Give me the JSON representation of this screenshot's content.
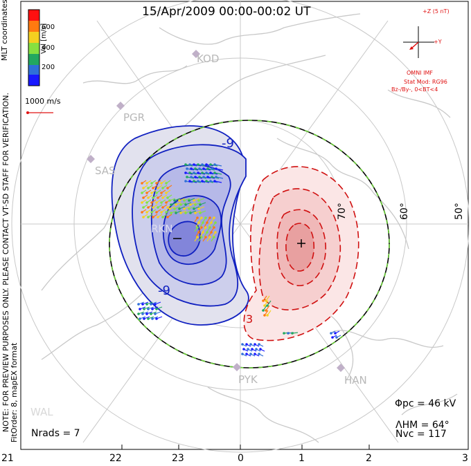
{
  "title": "15/Apr/2009 00:00-00:02 UT",
  "colorbar": {
    "axis_label": "Vel [m/s]",
    "ticks": [
      "600",
      "400",
      "200"
    ],
    "colors": [
      "#ff1010",
      "#ff7a10",
      "#f4d020",
      "#86e040",
      "#22a860",
      "#2f6fd8",
      "#1818ff"
    ]
  },
  "coordinates_label": "MLT coordinates",
  "scale_vector_label": "1000 m/s",
  "side_note": "NOTE: FOR PREVIEW PURPOSES ONLY. PLEASE CONTACT VT-SD STAFF FOR VERIFICATION.",
  "fit_order": "FitOrder: 8, mapEX format",
  "imf": {
    "z_label": "+Z (5 nT)",
    "y_label": "+Y",
    "source": "OMNI IMF",
    "stat_mod": "Stat Mod: RG96",
    "condition": "Bz-/By-, 0<BT<4"
  },
  "stations": [
    "KOD",
    "PGR",
    "SAS",
    "RKN",
    "PYK",
    "HAN",
    "WAL"
  ],
  "latitude_labels": [
    "70°",
    "60°",
    "50°"
  ],
  "mlt_ticks": [
    "21",
    "22",
    "23",
    "0",
    "1",
    "2",
    "3"
  ],
  "contour_labels": {
    "negative": "-9",
    "negative_low": "-9",
    "positive": "3"
  },
  "stats": {
    "phi_pc": "Φpc = 46 kV",
    "lambda_hm": "ΛHM = 64°",
    "n_vc": "Nvc = 117",
    "n_rads": "Nrads = 7"
  },
  "colors": {
    "negative_contour": "#1020c0",
    "positive_contour": "#d01010",
    "hm_boundary": "#000000",
    "hm_dash": "#66cc33",
    "land": "#c8c8c8"
  }
}
